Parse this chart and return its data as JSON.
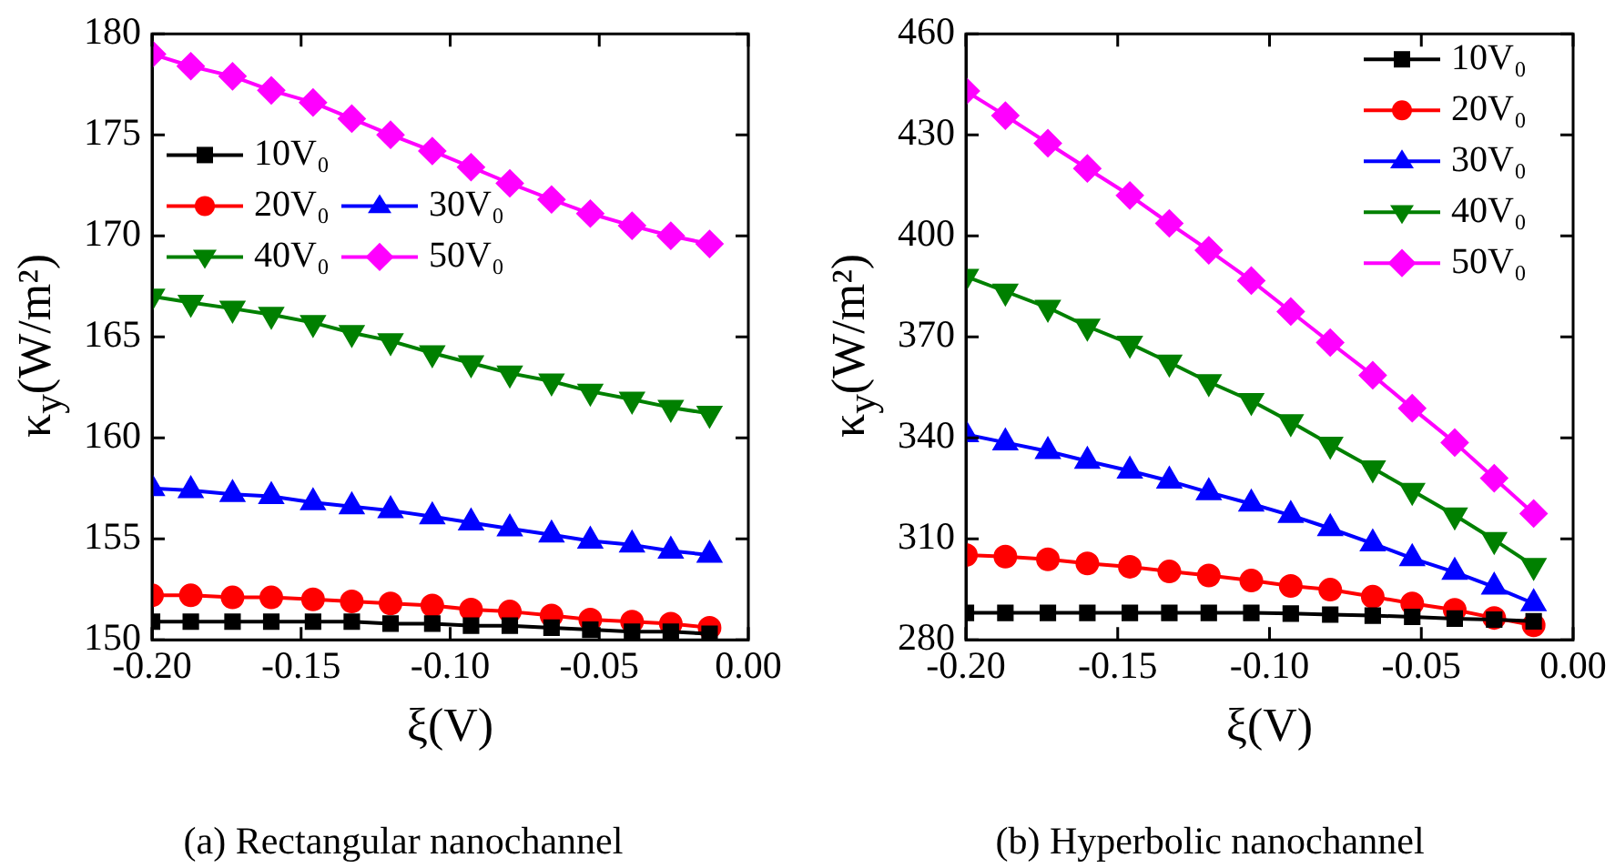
{
  "chart_data": [
    {
      "type": "line",
      "xlabel": "ξ(V)",
      "ylabel": "κ$_{y}$(W/m²)",
      "annotations": [
        "(a) Rectangular nanochannel"
      ],
      "x": [
        -0.2,
        -0.187,
        -0.173,
        -0.16,
        -0.146,
        -0.133,
        -0.12,
        -0.106,
        -0.093,
        -0.08,
        -0.066,
        -0.053,
        -0.039,
        -0.026,
        -0.013
      ],
      "xlim": [
        -0.2,
        0
      ],
      "xticks": [
        {
          "value": -0.2,
          "label": "-0.20"
        },
        {
          "value": -0.15,
          "label": "-0.15"
        },
        {
          "value": -0.1,
          "label": "-0.10"
        },
        {
          "value": -0.05,
          "label": "-0.05"
        },
        {
          "value": 0,
          "label": "0.00"
        }
      ],
      "ylim": [
        150,
        180
      ],
      "yticks": [
        150,
        155,
        160,
        165,
        170,
        175,
        180
      ],
      "legend": "left",
      "grid": false,
      "line_style": "solid",
      "series": [
        {
          "name": "10V₀",
          "color": "#000000",
          "marker": "square",
          "values": [
            150.9,
            150.9,
            150.9,
            150.9,
            150.9,
            150.9,
            150.8,
            150.8,
            150.7,
            150.7,
            150.6,
            150.5,
            150.4,
            150.4,
            150.3
          ]
        },
        {
          "name": "20V₀",
          "color": "#ff0000",
          "marker": "circle",
          "values": [
            152.2,
            152.2,
            152.1,
            152.1,
            152.0,
            151.9,
            151.8,
            151.7,
            151.5,
            151.4,
            151.2,
            151.0,
            150.9,
            150.8,
            150.6
          ]
        },
        {
          "name": "30V₀",
          "color": "#0000ff",
          "marker": "triangle",
          "values": [
            157.5,
            157.4,
            157.2,
            157.1,
            156.8,
            156.6,
            156.4,
            156.1,
            155.8,
            155.5,
            155.2,
            154.9,
            154.7,
            154.4,
            154.2
          ]
        },
        {
          "name": "40V₀",
          "color": "#008000",
          "marker": "triangle-down",
          "values": [
            167.0,
            166.7,
            166.4,
            166.1,
            165.7,
            165.2,
            164.8,
            164.2,
            163.7,
            163.2,
            162.8,
            162.3,
            161.9,
            161.5,
            161.2
          ]
        },
        {
          "name": "50V₀",
          "color": "#ff00ff",
          "marker": "diamond",
          "values": [
            179.0,
            178.4,
            177.9,
            177.2,
            176.6,
            175.8,
            175.0,
            174.2,
            173.4,
            172.6,
            171.8,
            171.1,
            170.5,
            170.0,
            169.6
          ]
        }
      ]
    },
    {
      "type": "line",
      "xlabel": "ξ(V)",
      "ylabel": "κ$_{y}$(W/m²)",
      "annotations": [
        "(b) Hyperbolic nanochannel"
      ],
      "x": [
        -0.2,
        -0.187,
        -0.173,
        -0.16,
        -0.146,
        -0.133,
        -0.12,
        -0.106,
        -0.093,
        -0.08,
        -0.066,
        -0.053,
        -0.039,
        -0.026,
        -0.013
      ],
      "xlim": [
        -0.2,
        0
      ],
      "xticks": [
        {
          "value": -0.2,
          "label": "-0.20"
        },
        {
          "value": -0.15,
          "label": "-0.15"
        },
        {
          "value": -0.1,
          "label": "-0.10"
        },
        {
          "value": -0.05,
          "label": "-0.05"
        },
        {
          "value": 0,
          "label": "0.00"
        }
      ],
      "ylim": [
        280,
        460
      ],
      "yticks": [
        280,
        310,
        340,
        370,
        400,
        430,
        460
      ],
      "legend": "top right",
      "grid": false,
      "line_style": "solid",
      "series": [
        {
          "name": "10V₀",
          "color": "#000000",
          "marker": "square",
          "values": [
            288,
            288,
            288,
            288,
            288,
            288,
            288,
            288,
            287.8,
            287.5,
            287.2,
            286.8,
            286.3,
            286,
            285.5
          ]
        },
        {
          "name": "20V₀",
          "color": "#ff0000",
          "marker": "circle",
          "values": [
            305.2,
            304.7,
            303.9,
            302.7,
            301.7,
            300.3,
            299.1,
            297.6,
            296,
            294.9,
            292.8,
            290.8,
            288.9,
            286.5,
            284.3
          ]
        },
        {
          "name": "30V₀",
          "color": "#0000ff",
          "marker": "triangle",
          "values": [
            341,
            338.6,
            336,
            333.1,
            330.2,
            327.2,
            323.8,
            320.4,
            317,
            313.1,
            308.6,
            304.2,
            300.1,
            295.7,
            290.8
          ]
        },
        {
          "name": "40V₀",
          "color": "#008000",
          "marker": "triangle-down",
          "values": [
            387.9,
            383.5,
            378.7,
            373.1,
            368,
            362.4,
            356.6,
            351,
            344.7,
            338,
            331,
            324.3,
            317,
            309.7,
            302
          ]
        },
        {
          "name": "50V₀",
          "color": "#ff00ff",
          "marker": "diamond",
          "values": [
            443,
            435.7,
            427.5,
            420,
            412,
            403.7,
            395.7,
            386.7,
            377.5,
            368.3,
            358.6,
            348.8,
            338.6,
            328,
            317.5
          ]
        }
      ]
    }
  ]
}
